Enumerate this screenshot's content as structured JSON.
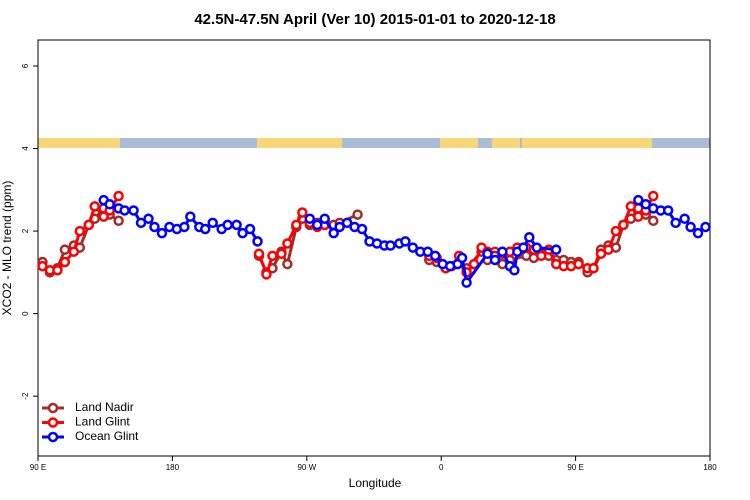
{
  "chart_data": {
    "type": "line",
    "title": "42.5N-47.5N April (Ver 10)   2015-01-01 to 2020-12-18",
    "x_label": "Longitude",
    "y_label": "XCO2 - MLO trend (ppm)",
    "xlim": [
      90,
      540
    ],
    "ylim": [
      -3.45,
      6.63
    ],
    "xticks": [
      {
        "value": 90,
        "label": "90 E"
      },
      {
        "value": 180,
        "label": "180"
      },
      {
        "value": 270,
        "label": "90 W"
      },
      {
        "value": 360,
        "label": "0"
      },
      {
        "value": 450,
        "label": "90 E"
      },
      {
        "value": 540,
        "label": "180"
      }
    ],
    "yticks": [
      -2,
      0,
      2,
      4,
      6
    ],
    "grid": false,
    "legend": "bottom-left",
    "series": [
      {
        "name": "Land Nadir",
        "color": "#a52a2a",
        "x": [
          93,
          98,
          103,
          108,
          114,
          118,
          124,
          128,
          134,
          138,
          144,
          190,
          238,
          243,
          247,
          253,
          257,
          263,
          267,
          272,
          277,
          282,
          288,
          292,
          304,
          330,
          352,
          357,
          363,
          372,
          377,
          387,
          391,
          396,
          401,
          406,
          417,
          422,
          427,
          432,
          437,
          442,
          447,
          452,
          458,
          462,
          467,
          472,
          477,
          482,
          487,
          492,
          497,
          502
        ],
        "values": [
          1.25,
          1.0,
          1.1,
          1.55,
          1.65,
          1.6,
          2.15,
          2.3,
          2.55,
          2.4,
          2.25,
          null,
          1.4,
          1.0,
          1.1,
          1.5,
          1.2,
          2.1,
          2.3,
          2.15,
          2.2,
          2.25,
          2.15,
          2.2,
          2.4,
          null,
          1.3,
          1.25,
          1.1,
          1.25,
          1.1,
          1.5,
          1.3,
          1.5,
          1.2,
          1.3,
          1.4,
          1.35,
          1.45,
          1.4,
          1.3,
          1.3,
          1.25,
          1.25,
          1.0,
          1.1,
          1.55,
          1.65,
          1.6,
          2.15,
          2.3,
          2.55,
          2.4,
          2.25
        ]
      },
      {
        "name": "Land Glint",
        "color": "#ff0000",
        "x": [
          93,
          98,
          103,
          108,
          114,
          118,
          124,
          128,
          134,
          138,
          144,
          190,
          238,
          243,
          247,
          253,
          257,
          263,
          267,
          272,
          277,
          282,
          320,
          352,
          357,
          363,
          367,
          372,
          377,
          382,
          387,
          391,
          396,
          401,
          406,
          411,
          417,
          422,
          427,
          432,
          437,
          442,
          447,
          452,
          458,
          462,
          467,
          472,
          477,
          482,
          487,
          492,
          497,
          502
        ],
        "values": [
          1.15,
          1.05,
          1.05,
          1.25,
          1.5,
          2.0,
          2.15,
          2.6,
          2.35,
          2.5,
          2.85,
          null,
          1.45,
          0.95,
          1.4,
          1.45,
          1.7,
          2.15,
          2.45,
          2.2,
          2.1,
          2.15,
          null,
          1.4,
          1.35,
          1.1,
          1.15,
          1.4,
          1.0,
          1.2,
          1.6,
          1.5,
          1.4,
          1.45,
          1.5,
          1.6,
          1.6,
          1.55,
          1.4,
          1.55,
          1.2,
          1.15,
          1.15,
          1.2,
          1.1,
          1.1,
          1.45,
          1.55,
          2.0,
          2.15,
          2.6,
          2.35,
          2.5,
          2.85
        ]
      },
      {
        "name": "Ocean Glint",
        "color": "#0000ff",
        "x": [
          134,
          138,
          144,
          148,
          154,
          159,
          164,
          168,
          173,
          178,
          183,
          188,
          192,
          198,
          202,
          207,
          213,
          217,
          223,
          227,
          232,
          237,
          255,
          272,
          277,
          282,
          288,
          292,
          297,
          302,
          307,
          312,
          317,
          322,
          326,
          332,
          336,
          341,
          346,
          351,
          356,
          361,
          366,
          371,
          374,
          377,
          391,
          396,
          401,
          406,
          409,
          411,
          415,
          419,
          424,
          437,
          465,
          492,
          497,
          502,
          507,
          512,
          517,
          523,
          527,
          532,
          537
        ],
        "values": [
          2.75,
          2.65,
          2.55,
          2.5,
          2.5,
          2.2,
          2.3,
          2.1,
          1.95,
          2.1,
          2.05,
          2.1,
          2.35,
          2.1,
          2.05,
          2.2,
          2.05,
          2.15,
          2.15,
          1.95,
          2.05,
          1.75,
          null,
          2.3,
          2.15,
          2.3,
          1.95,
          2.1,
          2.2,
          2.1,
          2.05,
          1.75,
          1.7,
          1.65,
          1.65,
          1.7,
          1.75,
          1.6,
          1.5,
          1.5,
          1.4,
          1.2,
          1.15,
          1.2,
          1.35,
          0.75,
          1.45,
          1.3,
          1.5,
          1.15,
          1.05,
          1.5,
          1.6,
          1.85,
          1.6,
          1.55,
          null,
          2.75,
          2.65,
          2.55,
          2.5,
          2.5,
          2.2,
          2.3,
          2.1,
          1.95,
          2.1
        ]
      }
    ]
  }
}
